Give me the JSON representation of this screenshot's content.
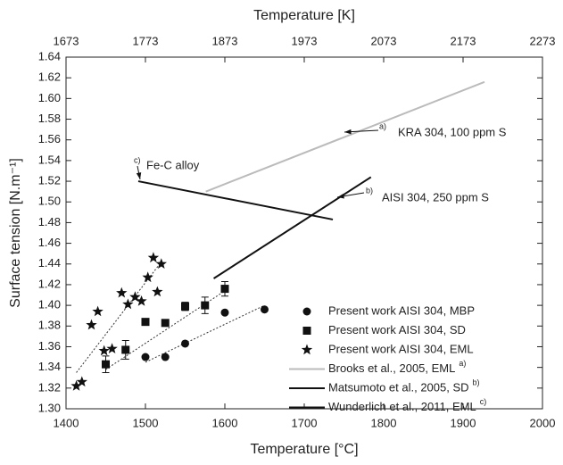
{
  "chart_data": {
    "type": "scatter",
    "xlabel": "Temperature [°C]",
    "x2label": "Temperature [K]",
    "ylabel": "Surface tension [N.m⁻¹]",
    "xlim": [
      1400,
      2000
    ],
    "xticks": [
      1400,
      1500,
      1600,
      1700,
      1800,
      1900,
      2000
    ],
    "x2lim": [
      1673,
      2273
    ],
    "x2ticks": [
      1673,
      1773,
      1873,
      1973,
      2073,
      2173,
      2273
    ],
    "ylim": [
      1.3,
      1.64
    ],
    "yticks": [
      {
        "value": 1.3,
        "label": "1.30"
      },
      {
        "value": 1.32,
        "label": "1.32"
      },
      {
        "value": 1.34,
        "label": "1.34"
      },
      {
        "value": 1.36,
        "label": "1.36"
      },
      {
        "value": 1.38,
        "label": "1.38"
      },
      {
        "value": 1.4,
        "label": "1.40"
      },
      {
        "value": 1.42,
        "label": "1.42"
      },
      {
        "value": 1.44,
        "label": "1.44"
      },
      {
        "value": 1.46,
        "label": "1.46"
      },
      {
        "value": 1.48,
        "label": "1.48"
      },
      {
        "value": 1.5,
        "label": "1.50"
      },
      {
        "value": 1.52,
        "label": "1.52"
      },
      {
        "value": 1.54,
        "label": "1.54"
      },
      {
        "value": 1.56,
        "label": "1.56"
      },
      {
        "value": 1.58,
        "label": "1.58"
      },
      {
        "value": 1.6,
        "label": "1.60"
      },
      {
        "value": 1.62,
        "label": "1.62"
      },
      {
        "value": 1.64,
        "label": "1.64"
      }
    ],
    "series": [
      {
        "name": "Present work AISI 304, MBP",
        "marker": "circle",
        "color": "#111111",
        "x": [
          1500,
          1525,
          1550,
          1600,
          1650
        ],
        "values": [
          1.35,
          1.35,
          1.363,
          1.393,
          1.396
        ]
      },
      {
        "name": "Present work AISI 304, SD",
        "marker": "square",
        "color": "#111111",
        "x": [
          1450,
          1475,
          1500,
          1525,
          1550,
          1575,
          1600
        ],
        "values": [
          1.343,
          1.357,
          1.384,
          1.383,
          1.399,
          1.4,
          1.416
        ],
        "errors": [
          0.008,
          0.009,
          0,
          0,
          0.004,
          0.008,
          0.007
        ]
      },
      {
        "name": "Present work AISI 304, EML",
        "marker": "star",
        "color": "#111111",
        "x": [
          1413,
          1420,
          1432,
          1440,
          1448,
          1458,
          1470,
          1478,
          1487,
          1495,
          1503,
          1510,
          1515,
          1520
        ],
        "values": [
          1.322,
          1.326,
          1.381,
          1.394,
          1.356,
          1.358,
          1.412,
          1.401,
          1.408,
          1.404,
          1.427,
          1.446,
          1.413,
          1.44
        ]
      },
      {
        "name": "Brooks et al., 2005, EML",
        "ref": "a)",
        "marker": "line",
        "color": "#bbbbbb",
        "x": [
          1576,
          1927
        ],
        "values": [
          1.51,
          1.616
        ]
      },
      {
        "name": "Matsumoto et al., 2005, SD",
        "ref": "b)",
        "marker": "line",
        "color": "#111111",
        "x": [
          1586,
          1784
        ],
        "values": [
          1.426,
          1.524
        ]
      },
      {
        "name": "Wunderlich et al., 2011, EML",
        "ref": "c)",
        "marker": "line",
        "color": "#111111",
        "x": [
          1491,
          1736
        ],
        "values": [
          1.52,
          1.483
        ]
      }
    ],
    "fit_lines": [
      {
        "x": [
          1500,
          1650
        ],
        "values": [
          1.345,
          1.4
        ]
      },
      {
        "x": [
          1450,
          1600
        ],
        "values": [
          1.338,
          1.414
        ]
      },
      {
        "x": [
          1413,
          1520
        ],
        "values": [
          1.335,
          1.442
        ]
      }
    ],
    "annotations": [
      {
        "text": "KRA 304, 100 ppm S",
        "ref": "a)"
      },
      {
        "text": "AISI 304, 250 ppm S",
        "ref": "b)"
      },
      {
        "text": "Fe-C alloy",
        "ref": "c)"
      }
    ]
  }
}
